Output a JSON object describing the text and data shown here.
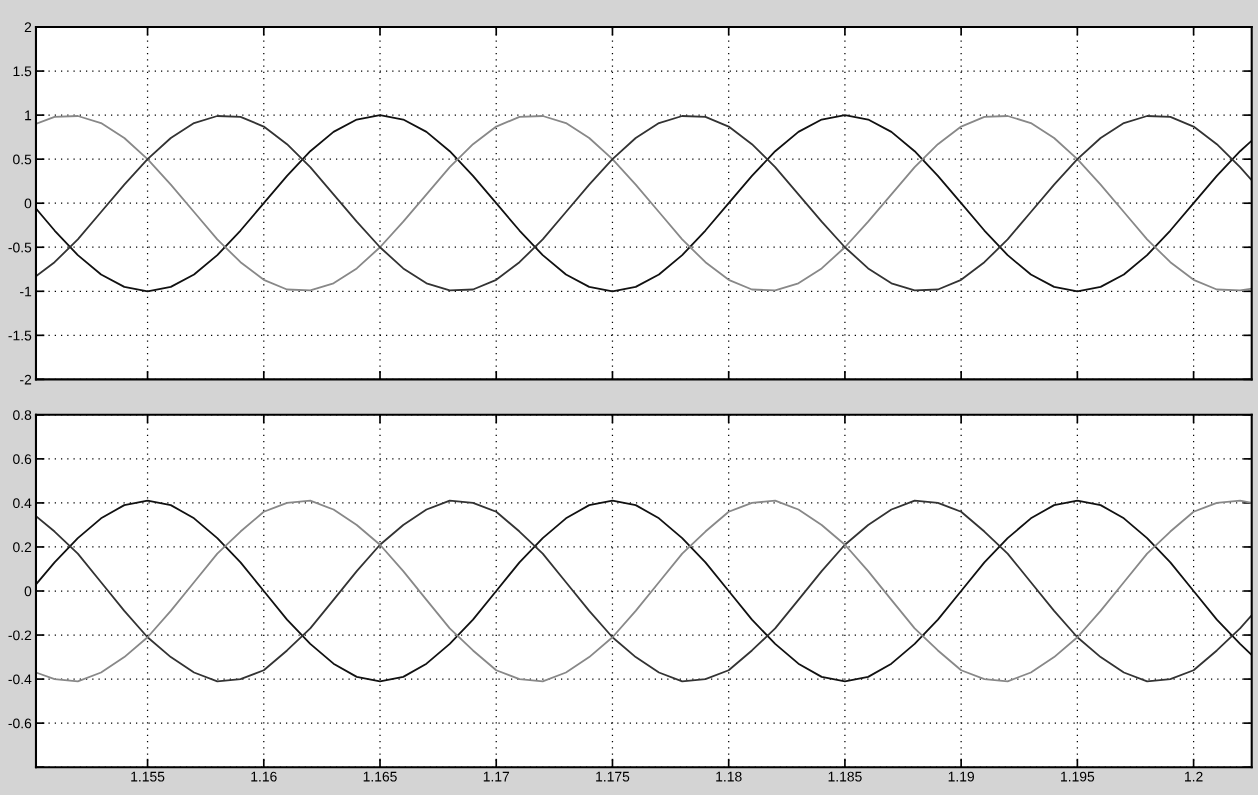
{
  "chart_data": [
    {
      "type": "line",
      "tick_labels": "y",
      "grid": true,
      "line_style": "solid",
      "x": [
        1.1502,
        1.151,
        1.152,
        1.153,
        1.154,
        1.155,
        1.156,
        1.157,
        1.158,
        1.159,
        1.16,
        1.161,
        1.162,
        1.163,
        1.164,
        1.165,
        1.166,
        1.167,
        1.168,
        1.169,
        1.17,
        1.171,
        1.172,
        1.173,
        1.174,
        1.175,
        1.176,
        1.177,
        1.178,
        1.179,
        1.18,
        1.181,
        1.182,
        1.183,
        1.184,
        1.185,
        1.186,
        1.187,
        1.188,
        1.189,
        1.19,
        1.191,
        1.192,
        1.193,
        1.194,
        1.195,
        1.196,
        1.197,
        1.198,
        1.199,
        1.2,
        1.201,
        1.202,
        1.2025
      ],
      "xlim": [
        1.1502,
        1.2025
      ],
      "xticks": [
        1.155,
        1.16,
        1.165,
        1.17,
        1.175,
        1.18,
        1.185,
        1.19,
        1.195,
        1.2
      ],
      "ylim": [
        -2,
        2
      ],
      "yticks": [
        -2,
        -1.5,
        -1,
        -0.5,
        0,
        0.5,
        1,
        1.5,
        2
      ],
      "series": [
        {
          "color": "#111111",
          "values": [
            -0.06,
            -0.31,
            -0.59,
            -0.81,
            -0.95,
            -1,
            -0.95,
            -0.81,
            -0.59,
            -0.31,
            0,
            0.31,
            0.59,
            0.81,
            0.95,
            1,
            0.95,
            0.81,
            0.59,
            0.31,
            0,
            -0.31,
            -0.59,
            -0.81,
            -0.95,
            -1,
            -0.95,
            -0.81,
            -0.59,
            -0.31,
            0,
            0.31,
            0.59,
            0.81,
            0.95,
            1,
            0.95,
            0.81,
            0.59,
            0.31,
            0,
            -0.31,
            -0.59,
            -0.81,
            -0.95,
            -1,
            -0.95,
            -0.81,
            -0.59,
            -0.31,
            0,
            0.31,
            0.59,
            0.71
          ]
        },
        {
          "color": "#888888",
          "values": [
            0.9,
            0.98,
            0.99,
            0.91,
            0.74,
            0.5,
            0.21,
            -0.1,
            -0.41,
            -0.67,
            -0.87,
            -0.98,
            -0.99,
            -0.91,
            -0.74,
            -0.5,
            -0.21,
            0.1,
            0.41,
            0.67,
            0.87,
            0.98,
            0.99,
            0.91,
            0.74,
            0.5,
            0.21,
            -0.1,
            -0.41,
            -0.67,
            -0.87,
            -0.98,
            -0.99,
            -0.91,
            -0.74,
            -0.5,
            -0.21,
            0.1,
            0.41,
            0.67,
            0.87,
            0.98,
            0.99,
            0.91,
            0.74,
            0.5,
            0.21,
            -0.1,
            -0.41,
            -0.67,
            -0.87,
            -0.98,
            -0.99,
            -0.97
          ]
        },
        {
          "color": "#333333",
          "values": [
            -0.83,
            -0.67,
            -0.41,
            -0.1,
            0.21,
            0.5,
            0.74,
            0.91,
            0.99,
            0.98,
            0.87,
            0.67,
            0.41,
            0.1,
            -0.21,
            -0.5,
            -0.74,
            -0.91,
            -0.99,
            -0.98,
            -0.87,
            -0.67,
            -0.41,
            -0.1,
            0.21,
            0.5,
            0.74,
            0.91,
            0.99,
            0.98,
            0.87,
            0.67,
            0.41,
            0.1,
            -0.21,
            -0.5,
            -0.74,
            -0.91,
            -0.99,
            -0.98,
            -0.87,
            -0.67,
            -0.41,
            -0.1,
            0.21,
            0.5,
            0.74,
            0.91,
            0.99,
            0.98,
            0.87,
            0.67,
            0.41,
            0.26
          ]
        }
      ]
    },
    {
      "type": "line",
      "grid": true,
      "line_style": "solid",
      "x": [
        1.1502,
        1.151,
        1.152,
        1.153,
        1.154,
        1.155,
        1.156,
        1.157,
        1.158,
        1.159,
        1.16,
        1.161,
        1.162,
        1.163,
        1.164,
        1.165,
        1.166,
        1.167,
        1.168,
        1.169,
        1.17,
        1.171,
        1.172,
        1.173,
        1.174,
        1.175,
        1.176,
        1.177,
        1.178,
        1.179,
        1.18,
        1.181,
        1.182,
        1.183,
        1.184,
        1.185,
        1.186,
        1.187,
        1.188,
        1.189,
        1.19,
        1.191,
        1.192,
        1.193,
        1.194,
        1.195,
        1.196,
        1.197,
        1.198,
        1.199,
        1.2,
        1.201,
        1.202,
        1.2025
      ],
      "xlim": [
        1.1502,
        1.2025
      ],
      "xticks": [
        1.155,
        1.16,
        1.165,
        1.17,
        1.175,
        1.18,
        1.185,
        1.19,
        1.195,
        1.2
      ],
      "ylim": [
        -0.8,
        0.8
      ],
      "yticks": [
        {
          "value": -0.8,
          "label": null
        },
        -0.6,
        -0.4,
        -0.2,
        0,
        0.2,
        0.4,
        0.6,
        0.8
      ],
      "series": [
        {
          "color": "#111111",
          "values": [
            0.03,
            0.13,
            0.24,
            0.33,
            0.39,
            0.41,
            0.39,
            0.33,
            0.24,
            0.13,
            0,
            -0.13,
            -0.24,
            -0.33,
            -0.39,
            -0.41,
            -0.39,
            -0.33,
            -0.24,
            -0.13,
            0,
            0.13,
            0.24,
            0.33,
            0.39,
            0.41,
            0.39,
            0.33,
            0.24,
            0.13,
            0,
            -0.13,
            -0.24,
            -0.33,
            -0.39,
            -0.41,
            -0.39,
            -0.33,
            -0.24,
            -0.13,
            0,
            0.13,
            0.24,
            0.33,
            0.39,
            0.41,
            0.39,
            0.33,
            0.24,
            0.13,
            0,
            -0.13,
            -0.24,
            -0.29
          ]
        },
        {
          "color": "#333333",
          "values": [
            0.34,
            0.27,
            0.17,
            0.04,
            -0.09,
            -0.21,
            -0.3,
            -0.37,
            -0.41,
            -0.4,
            -0.36,
            -0.27,
            -0.17,
            -0.04,
            0.09,
            0.21,
            0.3,
            0.37,
            0.41,
            0.4,
            0.36,
            0.27,
            0.17,
            0.04,
            -0.09,
            -0.21,
            -0.3,
            -0.37,
            -0.41,
            -0.4,
            -0.36,
            -0.27,
            -0.17,
            -0.04,
            0.09,
            0.21,
            0.3,
            0.37,
            0.41,
            0.4,
            0.36,
            0.27,
            0.17,
            0.04,
            -0.09,
            -0.21,
            -0.3,
            -0.37,
            -0.41,
            -0.4,
            -0.36,
            -0.27,
            -0.17,
            -0.11
          ]
        },
        {
          "color": "#888888",
          "values": [
            -0.37,
            -0.4,
            -0.41,
            -0.37,
            -0.3,
            -0.21,
            -0.09,
            0.04,
            0.17,
            0.27,
            0.36,
            0.4,
            0.41,
            0.37,
            0.3,
            0.21,
            0.09,
            -0.04,
            -0.17,
            -0.27,
            -0.36,
            -0.4,
            -0.41,
            -0.37,
            -0.3,
            -0.21,
            -0.09,
            0.04,
            0.17,
            0.27,
            0.36,
            0.4,
            0.41,
            0.37,
            0.3,
            0.21,
            0.09,
            -0.04,
            -0.17,
            -0.27,
            -0.36,
            -0.4,
            -0.41,
            -0.37,
            -0.3,
            -0.21,
            -0.09,
            0.04,
            0.17,
            0.27,
            0.36,
            0.4,
            0.41,
            0.4
          ]
        }
      ]
    }
  ]
}
